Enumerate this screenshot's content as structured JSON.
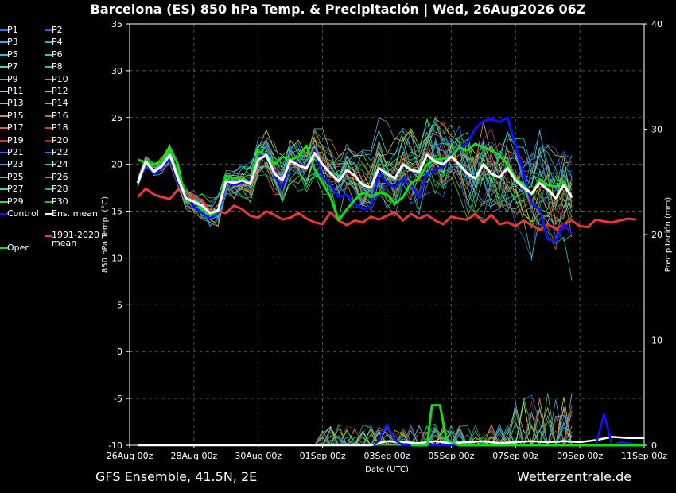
{
  "title": "Barcelona  (ES)  850 hPa Temp. & Precipitación | Wed, 26Aug2026 06Z",
  "footer_left": "GFS Ensemble, 41.5N, 2E",
  "footer_right": "Wetterzentrale.de",
  "legend": [
    {
      "label": "P1",
      "color": "#3b6bff"
    },
    {
      "label": "P2",
      "color": "#2f5fe0"
    },
    {
      "label": "P3",
      "color": "#4f9fe8"
    },
    {
      "label": "P4",
      "color": "#34a8d8"
    },
    {
      "label": "P5",
      "color": "#2ec4d8"
    },
    {
      "label": "P6",
      "color": "#28c8a8"
    },
    {
      "label": "P7",
      "color": "#3fd8c8"
    },
    {
      "label": "P8",
      "color": "#30c878"
    },
    {
      "label": "P9",
      "color": "#48e048"
    },
    {
      "label": "P10",
      "color": "#30d030"
    },
    {
      "label": "P11",
      "color": "#c8d048"
    },
    {
      "label": "P12",
      "color": "#e0c040"
    },
    {
      "label": "P13",
      "color": "#e0b030"
    },
    {
      "label": "P14",
      "color": "#e0a040"
    },
    {
      "label": "P15",
      "color": "#d88860"
    },
    {
      "label": "P16",
      "color": "#c87040"
    },
    {
      "label": "P17",
      "color": "#d06838"
    },
    {
      "label": "P18",
      "color": "#c04830"
    },
    {
      "label": "P19",
      "color": "#c83838"
    },
    {
      "label": "P20",
      "color": "#a82020"
    },
    {
      "label": "P21",
      "color": "#3060ff"
    },
    {
      "label": "P22",
      "color": "#2878e8"
    },
    {
      "label": "P23",
      "color": "#4898e0"
    },
    {
      "label": "P24",
      "color": "#40b0d8"
    },
    {
      "label": "P25",
      "color": "#30c8d0"
    },
    {
      "label": "P26",
      "color": "#28c898"
    },
    {
      "label": "P27",
      "color": "#38d8a8"
    },
    {
      "label": "P28",
      "color": "#20b070"
    },
    {
      "label": "P29",
      "color": "#40d840"
    },
    {
      "label": "P30",
      "color": "#28c028"
    },
    {
      "label": "Control",
      "color": "#1010ff"
    },
    {
      "label": "Ens. mean",
      "color": "#ffffff"
    },
    {
      "label": "1991-2020 mean",
      "color": "#e83838"
    },
    {
      "label": "Oper",
      "color": "#10e010"
    }
  ],
  "chart_data": {
    "type": "line",
    "title": "Barcelona  (ES)  850 hPa Temp. & Precipitación | Wed, 26Aug2026 06Z",
    "xlabel": "Date (UTC)",
    "ylabel": "850 hPa Temp. (°C)",
    "y2label": "Precipitación (mm)",
    "ylim": [
      -10,
      35
    ],
    "y2lim": [
      0,
      40
    ],
    "yticks": [
      -10,
      -5,
      0,
      5,
      10,
      15,
      20,
      25,
      30,
      35
    ],
    "y2ticks": [
      0,
      10,
      20,
      30,
      40
    ],
    "xlim": [
      0,
      16
    ],
    "xticks": [
      0,
      2,
      4,
      6,
      8,
      10,
      12,
      14,
      16
    ],
    "xticklabels": [
      "26Aug 00z",
      "28Aug 00z",
      "30Aug 00z",
      "01Sep 00z",
      "03Sep 00z",
      "05Sep 00z",
      "07Sep 00z",
      "09Sep 00z",
      "11Sep 00z"
    ],
    "x_unit": "days since 26Aug 00z",
    "grid": true,
    "temp_x_start": 0.25,
    "temp_x_step": 0.25,
    "ensemble_mean": [
      18.0,
      20.3,
      19.2,
      19.8,
      21.0,
      18.5,
      16.4,
      16.0,
      15.6,
      14.8,
      15.1,
      18.2,
      18.0,
      18.3,
      17.9,
      20.5,
      21.0,
      19.0,
      18.3,
      20.4,
      19.9,
      19.6,
      21.2,
      20.0,
      19.0,
      18.2,
      19.4,
      18.8,
      17.8,
      17.5,
      19.6,
      19.0,
      18.5,
      20.0,
      19.4,
      19.2,
      21.0,
      20.3,
      20.0,
      20.8,
      20.0,
      19.0,
      18.5,
      20.0,
      19.0,
      18.6,
      19.6,
      18.3,
      17.5,
      16.9,
      18.0,
      17.3,
      16.4,
      17.8,
      16.5
    ],
    "control": [
      18.0,
      20.2,
      19.0,
      19.6,
      20.6,
      18.0,
      16.6,
      15.5,
      14.8,
      14.2,
      14.8,
      18.0,
      17.8,
      18.0,
      18.3,
      20.8,
      21.2,
      18.8,
      17.5,
      20.5,
      20.0,
      19.8,
      21.5,
      18.8,
      17.8,
      16.5,
      16.8,
      15.8,
      15.2,
      15.5,
      19.2,
      18.0,
      17.5,
      18.5,
      17.8,
      16.5,
      19.0,
      19.4,
      19.8,
      21.0,
      21.8,
      22.2,
      23.8,
      24.6,
      24.8,
      24.5,
      25.0,
      22.0,
      19.0,
      15.8,
      15.2,
      12.0,
      11.8,
      13.6,
      12.6
    ],
    "oper": [
      20.5,
      20.2,
      20.0,
      20.3,
      21.8,
      20.0,
      16.0,
      16.2,
      15.2,
      14.6,
      15.0,
      18.8,
      18.5,
      18.6,
      18.0,
      21.4,
      21.0,
      20.0,
      20.8,
      20.5,
      20.8,
      22.0,
      19.5,
      18.0,
      16.5,
      14.0,
      15.2,
      16.2,
      17.0,
      16.5,
      17.0,
      16.8,
      15.8,
      16.5,
      18.0,
      18.5,
      20.0,
      20.5,
      20.6,
      20.8,
      21.8,
      21.5,
      22.2,
      21.8,
      21.5,
      21.0,
      20.0,
      18.6,
      17.8,
      16.8,
      18.4,
      17.8,
      17.6,
      18.2,
      16.4
    ],
    "climate_mean": [
      16.5,
      17.4,
      16.8,
      16.5,
      16.3,
      17.3,
      16.8,
      16.4,
      16.2,
      15.0,
      15.0,
      14.8,
      15.6,
      15.2,
      14.5,
      14.3,
      15.0,
      14.6,
      14.1,
      14.3,
      14.8,
      14.2,
      13.8,
      13.6,
      14.9,
      14.0,
      13.5,
      14.0,
      13.8,
      14.4,
      14.1,
      14.5,
      14.9,
      14.0,
      14.7,
      14.2,
      14.6,
      14.0,
      13.6,
      14.4,
      14.2,
      14.1,
      14.7,
      13.8,
      14.6,
      13.6,
      13.8,
      13.4,
      14.0,
      13.5,
      13.0,
      13.6,
      13.1,
      13.6,
      14.0,
      13.4,
      13.3,
      14.1,
      13.9,
      13.8,
      14.0,
      14.2,
      14.1
    ],
    "precip_note": "mm on right axis",
    "precip_oper": [
      [
        8.75,
        0.0
      ],
      [
        9.25,
        0.0
      ],
      [
        9.4,
        3.8
      ],
      [
        9.65,
        3.8
      ],
      [
        9.85,
        0.5
      ],
      [
        10.25,
        0.0
      ],
      [
        16.0,
        0.0
      ]
    ],
    "precip_control": [
      [
        7.6,
        0.0
      ],
      [
        7.75,
        0.5
      ],
      [
        8.0,
        2.0
      ],
      [
        8.25,
        0.5
      ],
      [
        8.5,
        0.0
      ],
      [
        14.5,
        0.0
      ],
      [
        14.75,
        3.0
      ],
      [
        15.0,
        0.0
      ],
      [
        15.25,
        0.3
      ],
      [
        16.0,
        0.0
      ]
    ],
    "precip_mean": [
      [
        0.25,
        0.0
      ],
      [
        7.5,
        0.0
      ],
      [
        8.0,
        0.4
      ],
      [
        8.5,
        0.3
      ],
      [
        9.0,
        0.2
      ],
      [
        9.5,
        0.4
      ],
      [
        10.0,
        0.2
      ],
      [
        10.5,
        0.3
      ],
      [
        11.0,
        0.4
      ],
      [
        11.5,
        0.2
      ],
      [
        12.0,
        0.3
      ],
      [
        12.5,
        0.4
      ],
      [
        13.0,
        0.3
      ],
      [
        13.5,
        0.4
      ],
      [
        14.0,
        0.3
      ],
      [
        14.5,
        0.5
      ],
      [
        15.0,
        0.8
      ],
      [
        15.5,
        0.7
      ],
      [
        16.0,
        0.7
      ]
    ]
  }
}
